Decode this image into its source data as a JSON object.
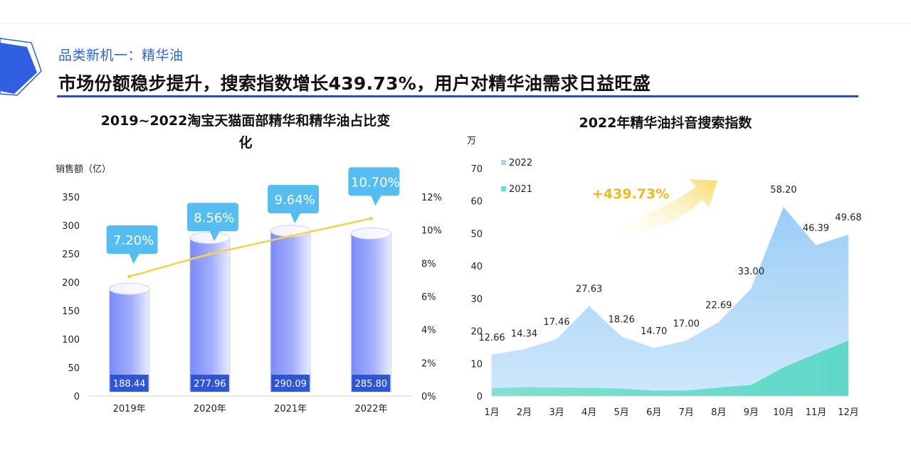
{
  "header": {
    "section_label": "品类新机一：精华油",
    "headline": "市场份额稳步提升，搜索指数增长439.73%，用户对精华油需求日益旺盛"
  },
  "chart_data": [
    {
      "type": "bar",
      "title_line1": "2019~2022淘宝天猫面部精华和精华油占比变",
      "title_line2": "化",
      "ylabel": "销售额（亿）",
      "categories": [
        "2019年",
        "2020年",
        "2021年",
        "2022年"
      ],
      "series": [
        {
          "values": [
            188.44,
            277.96,
            290.09,
            285.8
          ]
        },
        {
          "type": "line",
          "axis": "right",
          "values": [
            7.2,
            8.56,
            9.64,
            10.7
          ]
        }
      ],
      "value_labels": [
        "188.44",
        "277.96",
        "290.09",
        "285.80"
      ],
      "line_labels": [
        "7.20%",
        "8.56%",
        "9.64%",
        "10.70%"
      ],
      "ylim": [
        0,
        350
      ],
      "yticks": [
        "0",
        "50",
        "100",
        "150",
        "200",
        "250",
        "300",
        "350"
      ],
      "y2lim": [
        0,
        12
      ],
      "y2ticks": [
        "0%",
        "2%",
        "4%",
        "6%",
        "8%",
        "10%",
        "12%"
      ],
      "colors": {
        "bar": "#8E9CF8",
        "label_box": "#2F54D4",
        "line": "#F2D24B",
        "callout": "#55BDF0"
      }
    },
    {
      "type": "area",
      "title": "2022年精华油抖音搜索指数",
      "ylabel": "万",
      "categories": [
        "1月",
        "2月",
        "3月",
        "4月",
        "5月",
        "6月",
        "7月",
        "8月",
        "9月",
        "10月",
        "11月",
        "12月"
      ],
      "series": [
        {
          "name": "2022",
          "values": [
            12.66,
            14.34,
            17.46,
            27.63,
            18.26,
            14.7,
            17.0,
            22.69,
            33.0,
            58.2,
            46.39,
            49.68
          ]
        },
        {
          "name": "2021",
          "values": [
            2.4,
            2.7,
            2.6,
            2.5,
            2.3,
            1.6,
            1.7,
            2.6,
            3.4,
            8.8,
            13.0,
            17.0
          ]
        }
      ],
      "value_labels": [
        "12.66",
        "14.34",
        "17.46",
        "27.63",
        "18.26",
        "14.70",
        "17.00",
        "22.69",
        "33.00",
        "58.20",
        "46.39",
        "49.68"
      ],
      "ylim": [
        0,
        70
      ],
      "yticks": [
        "0",
        "10",
        "20",
        "30",
        "40",
        "50",
        "60",
        "70"
      ],
      "legend_position": "top-left",
      "annotation": "+439.73%",
      "colors": {
        "area_2022": "#A9D4F6",
        "area_2021": "#72DCCD",
        "annotation": "#F2B71C",
        "arrow": "#F8E07A"
      }
    }
  ]
}
